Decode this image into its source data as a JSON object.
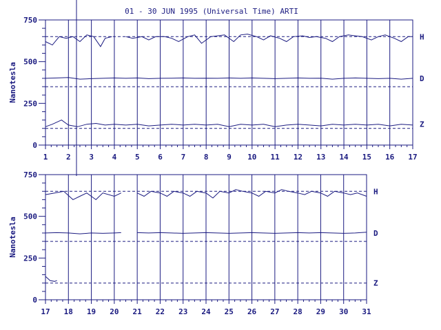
{
  "title": "01 - 30 JUN 1995 (Universal Time) ARTI",
  "ylabel": "Nanotesla",
  "colors": {
    "ink": "#1a1a80",
    "trace": "#1a1a80"
  },
  "chart_data": [
    {
      "type": "line",
      "panel": "top",
      "ylim": [
        0,
        750
      ],
      "yticks": [
        0,
        250,
        500,
        750
      ],
      "xlim": [
        1,
        17
      ],
      "xticks": [
        1,
        2,
        3,
        4,
        5,
        6,
        7,
        8,
        9,
        10,
        11,
        12,
        13,
        14,
        15,
        16,
        17
      ],
      "grid_x": true,
      "baselines": [
        {
          "name": "H",
          "value": 650
        },
        {
          "name": "D",
          "value": 350
        },
        {
          "name": "Z",
          "value": 100
        }
      ],
      "series": [
        {
          "name": "H",
          "level": 650,
          "x": [
            1.0,
            1.3,
            1.6,
            1.9,
            2.2,
            2.5,
            2.8,
            3.1,
            3.4,
            3.6,
            3.9,
            4.5,
            4.8,
            5.2,
            5.5,
            5.8,
            6.2,
            6.5,
            6.8,
            7.2,
            7.5,
            7.8,
            8.2,
            8.5,
            8.8,
            9.2,
            9.5,
            9.8,
            10.2,
            10.5,
            10.8,
            11.2,
            11.5,
            11.8,
            12.2,
            12.5,
            12.8,
            13.2,
            13.5,
            13.8,
            14.2,
            14.5,
            14.8,
            15.2,
            15.5,
            15.8,
            16.2,
            16.5,
            16.8,
            17.0
          ],
          "values": [
            620,
            600,
            650,
            640,
            650,
            620,
            660,
            650,
            590,
            640,
            650,
            650,
            640,
            650,
            630,
            650,
            650,
            640,
            620,
            650,
            660,
            610,
            650,
            655,
            660,
            620,
            660,
            665,
            650,
            630,
            655,
            640,
            620,
            650,
            655,
            645,
            650,
            640,
            620,
            650,
            660,
            655,
            650,
            630,
            650,
            660,
            640,
            620,
            650,
            650
          ]
        },
        {
          "name": "D",
          "level": 400,
          "x": [
            1.0,
            1.5,
            2.0,
            2.5,
            3.0,
            3.5,
            4.0,
            4.5,
            5.0,
            5.5,
            6.0,
            6.5,
            7.0,
            7.5,
            8.0,
            8.5,
            9.0,
            9.5,
            10.0,
            10.5,
            11.0,
            11.5,
            12.0,
            12.5,
            13.0,
            13.5,
            14.0,
            14.5,
            15.0,
            15.5,
            16.0,
            16.5,
            17.0
          ],
          "values": [
            400,
            402,
            405,
            395,
            398,
            400,
            402,
            400,
            402,
            398,
            400,
            401,
            402,
            400,
            401,
            400,
            402,
            400,
            402,
            400,
            398,
            400,
            402,
            400,
            401,
            395,
            400,
            402,
            400,
            398,
            400,
            395,
            400
          ]
        },
        {
          "name": "Z",
          "level": 125,
          "x": [
            1.0,
            1.3,
            1.7,
            2.0,
            2.4,
            2.8,
            3.2,
            3.6,
            4.0,
            4.5,
            5.0,
            5.5,
            6.0,
            6.5,
            7.0,
            7.5,
            8.0,
            8.5,
            9.0,
            9.5,
            10.0,
            10.5,
            11.0,
            11.5,
            12.0,
            12.5,
            13.0,
            13.5,
            14.0,
            14.5,
            15.0,
            15.5,
            16.0,
            16.5,
            17.0
          ],
          "values": [
            110,
            125,
            150,
            120,
            110,
            125,
            130,
            120,
            125,
            120,
            125,
            115,
            120,
            125,
            120,
            125,
            120,
            125,
            110,
            125,
            120,
            125,
            110,
            120,
            125,
            120,
            115,
            125,
            120,
            125,
            120,
            125,
            115,
            125,
            120
          ]
        }
      ]
    },
    {
      "type": "line",
      "panel": "bottom",
      "ylim": [
        0,
        750
      ],
      "yticks": [
        0,
        250,
        500,
        750
      ],
      "xlim": [
        17,
        31
      ],
      "xticks": [
        17,
        18,
        19,
        20,
        21,
        22,
        23,
        24,
        25,
        26,
        27,
        28,
        29,
        30,
        31
      ],
      "grid_x": true,
      "baselines": [
        {
          "name": "H",
          "value": 650
        },
        {
          "name": "D",
          "value": 350
        },
        {
          "name": "Z",
          "value": 100
        }
      ],
      "series": [
        {
          "name": "H",
          "level": 650,
          "x": [
            17.0,
            17.4,
            17.8,
            18.2,
            18.5,
            18.8,
            19.2,
            19.5,
            20.0,
            20.3,
            21.0,
            21.3,
            21.6,
            22.0,
            22.3,
            22.6,
            23.0,
            23.3,
            23.6,
            24.0,
            24.3,
            24.6,
            25.0,
            25.3,
            25.6,
            26.0,
            26.3,
            26.6,
            27.0,
            27.3,
            27.6,
            28.0,
            28.3,
            28.6,
            29.0,
            29.3,
            29.6,
            30.0,
            30.3,
            30.6,
            31.0
          ],
          "values": [
            630,
            640,
            650,
            600,
            620,
            640,
            600,
            640,
            620,
            640,
            640,
            620,
            650,
            640,
            620,
            650,
            640,
            620,
            650,
            640,
            610,
            650,
            640,
            660,
            650,
            640,
            620,
            650,
            640,
            660,
            650,
            640,
            630,
            650,
            640,
            620,
            650,
            640,
            630,
            640,
            620
          ]
        },
        {
          "name": "D",
          "level": 400,
          "x": [
            17.0,
            17.5,
            18.0,
            18.5,
            19.0,
            19.5,
            20.0,
            20.3,
            21.0,
            21.5,
            22.0,
            22.5,
            23.0,
            23.5,
            24.0,
            24.5,
            25.0,
            25.5,
            26.0,
            26.5,
            27.0,
            27.5,
            28.0,
            28.5,
            29.0,
            29.5,
            30.0,
            30.5,
            31.0
          ],
          "values": [
            400,
            402,
            400,
            395,
            400,
            398,
            400,
            402,
            402,
            400,
            402,
            400,
            398,
            400,
            402,
            400,
            398,
            400,
            402,
            400,
            398,
            400,
            402,
            400,
            402,
            400,
            398,
            400,
            405
          ]
        },
        {
          "name": "Z",
          "level": 100,
          "x": [
            17.0,
            17.2,
            17.4,
            17.5
          ],
          "values": [
            140,
            115,
            110,
            115
          ]
        }
      ]
    }
  ]
}
